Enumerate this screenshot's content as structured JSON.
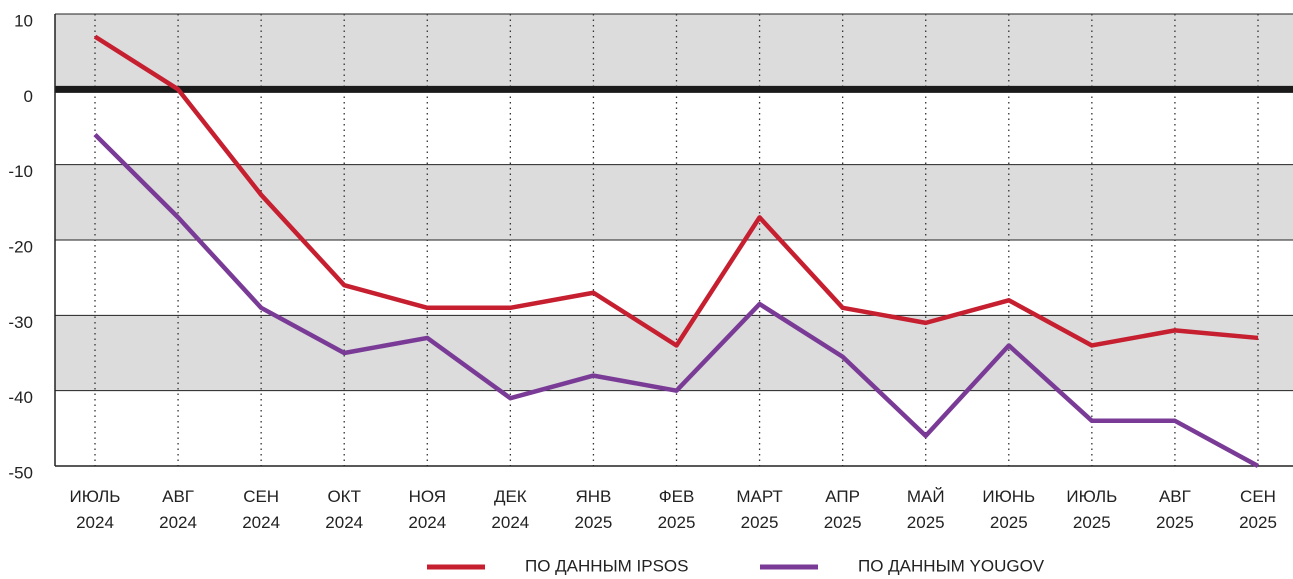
{
  "chart_data": {
    "type": "line",
    "categories": [
      "ИЮЛЬ\n2024",
      "АВГ\n2024",
      "СЕН\n2024",
      "ОКТ\n2024",
      "НОЯ\n2024",
      "ДЕК\n2024",
      "ЯНВ\n2025",
      "ФЕВ\n2025",
      "МАРТ\n2025",
      "АПР\n2025",
      "МАЙ\n2025",
      "ИЮНЬ\n2025",
      "ИЮЛЬ\n2025",
      "АВГ\n2025",
      "СЕН\n2025"
    ],
    "series": [
      {
        "name": "ПО ДАННЫМ IPSOS",
        "color": "#c61f30",
        "values": [
          7,
          0,
          -14,
          -26,
          -29,
          -29,
          -27,
          -34,
          -17,
          -29,
          -31,
          -28,
          -34,
          -32,
          -33
        ]
      },
      {
        "name": "ПО ДАННЫМ YOUGOV",
        "color": "#7a3b97",
        "values": [
          -6,
          -17,
          -29,
          -35,
          -33,
          -41,
          -38,
          -40,
          -28.5,
          -35.5,
          -46,
          -34,
          -44,
          -44,
          -50
        ]
      }
    ],
    "ylim": [
      -50,
      10
    ],
    "yticks": [
      10,
      0,
      -10,
      -20,
      -30,
      -40,
      -50
    ],
    "grid": true,
    "legend": "bottom"
  }
}
